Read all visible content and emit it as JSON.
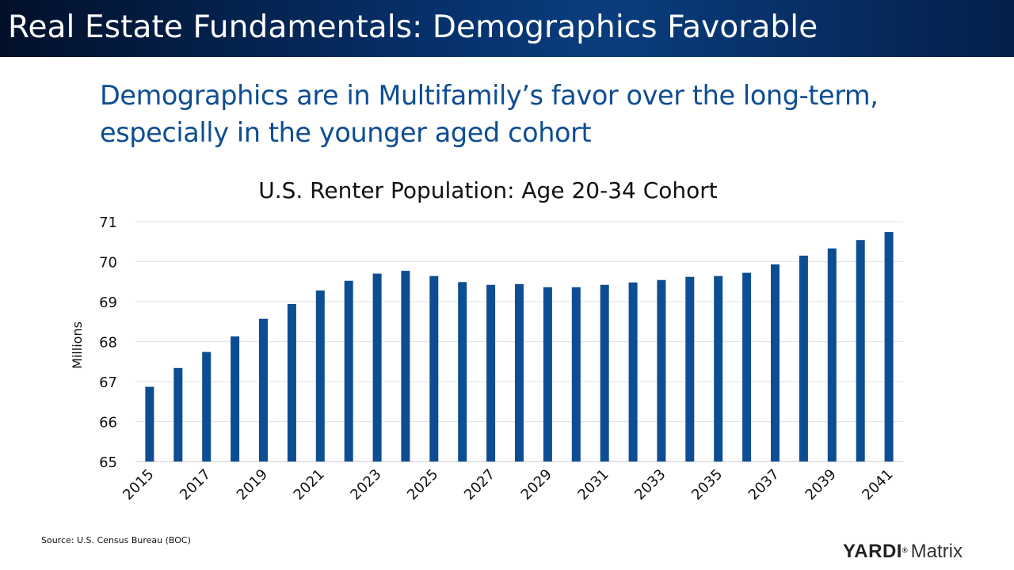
{
  "header": {
    "title": "Real Estate Fundamentals: Demographics Favorable"
  },
  "subtitle": {
    "line1": "Demographics are in Multifamily’s favor over the long-term,",
    "line2": "especially in the younger aged cohort"
  },
  "chart_data": {
    "type": "bar",
    "title": "U.S. Renter Population: Age 20-34 Cohort",
    "xlabel": "",
    "ylabel": "Millions",
    "ylim": [
      65,
      71
    ],
    "yticks": [
      65,
      66,
      67,
      68,
      69,
      70,
      71
    ],
    "grid": true,
    "legend": "none",
    "bar_color": "#0d4d92",
    "categories": [
      2015,
      2016,
      2017,
      2018,
      2019,
      2020,
      2021,
      2022,
      2023,
      2024,
      2025,
      2026,
      2027,
      2028,
      2029,
      2030,
      2031,
      2032,
      2033,
      2034,
      2035,
      2036,
      2037,
      2038,
      2039,
      2040,
      2041
    ],
    "tick_labels": [
      "2015",
      "2017",
      "2019",
      "2021",
      "2023",
      "2025",
      "2027",
      "2029",
      "2031",
      "2033",
      "2035",
      "2037",
      "2039",
      "2041"
    ],
    "values": [
      66.87,
      67.34,
      67.74,
      68.13,
      68.57,
      68.94,
      69.28,
      69.52,
      69.7,
      69.77,
      69.64,
      69.49,
      69.42,
      69.44,
      69.36,
      69.36,
      69.42,
      69.48,
      69.54,
      69.62,
      69.64,
      69.72,
      69.93,
      70.15,
      70.33,
      70.54,
      70.74
    ]
  },
  "source": "Source: U.S. Census Bureau (BOC)",
  "logo": {
    "brand": "YARDI",
    "reg": "®",
    "product": "Matrix"
  }
}
